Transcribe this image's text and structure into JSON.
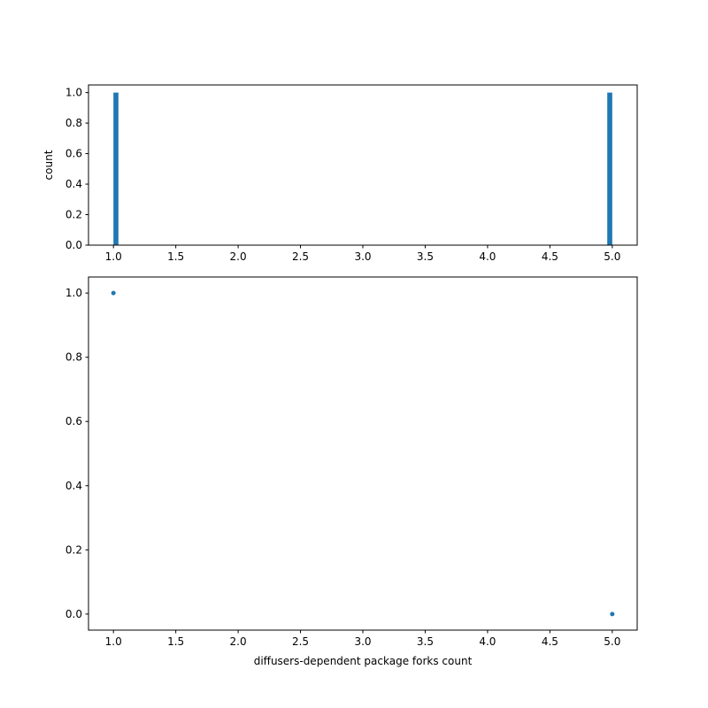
{
  "chart_data": [
    {
      "type": "bar",
      "subtype": "histogram",
      "bins": 100,
      "bin_edges_range": [
        1.0,
        5.0
      ],
      "bars": [
        {
          "x_start": 1.0,
          "x_end": 1.04,
          "value": 1
        },
        {
          "x_start": 4.96,
          "x_end": 5.0,
          "value": 1
        }
      ],
      "xlabel": "",
      "ylabel": "count",
      "xlim": [
        0.8,
        5.2
      ],
      "ylim": [
        0,
        1.05
      ],
      "xticks": [
        "1.0",
        "1.5",
        "2.0",
        "2.5",
        "3.0",
        "3.5",
        "4.0",
        "4.5",
        "5.0"
      ],
      "yticks": [
        "0.0",
        "0.2",
        "0.4",
        "0.6",
        "0.8",
        "1.0"
      ],
      "grid": false,
      "color": "#1f77b4"
    },
    {
      "type": "scatter",
      "points": [
        {
          "x": 1.0,
          "y": 1.0
        },
        {
          "x": 5.0,
          "y": 0.0
        }
      ],
      "xlabel": "diffusers-dependent package forks count",
      "ylabel": "",
      "xlim": [
        0.8,
        5.2
      ],
      "ylim": [
        -0.05,
        1.05
      ],
      "xticks": [
        "1.0",
        "1.5",
        "2.0",
        "2.5",
        "3.0",
        "3.5",
        "4.0",
        "4.5",
        "5.0"
      ],
      "yticks": [
        "0.0",
        "0.2",
        "0.4",
        "0.6",
        "0.8",
        "1.0"
      ],
      "grid": false,
      "color": "#1f77b4"
    }
  ]
}
